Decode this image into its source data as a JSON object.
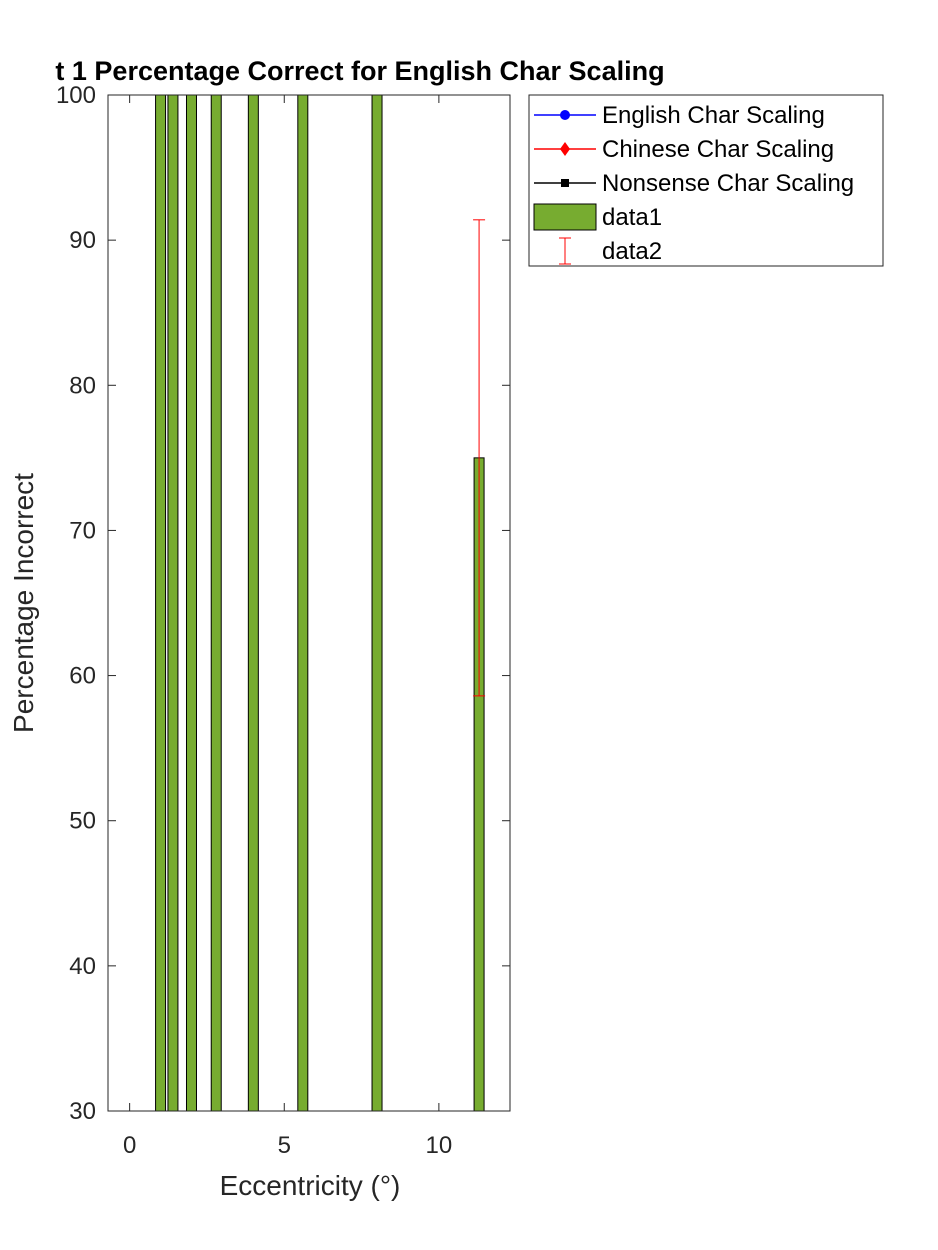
{
  "chart_data": {
    "type": "bar",
    "title": "t 1 Percentage Correct for English Char Scaling",
    "xlabel": "Eccentricity (°)",
    "ylabel": "Percentage Incorrect",
    "xlim": [
      -0.7,
      12.3
    ],
    "ylim": [
      30,
      100
    ],
    "xticks": [
      0,
      5,
      10
    ],
    "yticks": [
      30,
      40,
      50,
      60,
      70,
      80,
      90,
      100
    ],
    "grid": false,
    "legend_position": "outside top-right",
    "bar_color": "#77AC30",
    "errorbar_color": "#FF0000",
    "bars": [
      {
        "x": 1.0,
        "value": 100
      },
      {
        "x": 1.4,
        "value": 100
      },
      {
        "x": 2.0,
        "value": 100
      },
      {
        "x": 2.8,
        "value": 100
      },
      {
        "x": 4.0,
        "value": 100
      },
      {
        "x": 5.6,
        "value": 100
      },
      {
        "x": 8.0,
        "value": 100
      },
      {
        "x": 11.3,
        "value": 75
      }
    ],
    "errorbars": [
      {
        "x": 11.3,
        "low": 58.6,
        "high": 91.4
      }
    ],
    "legend": [
      {
        "label": "English Char Scaling",
        "color": "#0000FF",
        "marker": "circle"
      },
      {
        "label": "Chinese Char Scaling",
        "color": "#FF0000",
        "marker": "diamond"
      },
      {
        "label": "Nonsense Char Scaling",
        "color": "#000000",
        "marker": "square"
      },
      {
        "label": "data1",
        "color": "#77AC30",
        "marker": "bar"
      },
      {
        "label": "data2",
        "color": "#FF0000",
        "marker": "errorbar"
      }
    ]
  }
}
